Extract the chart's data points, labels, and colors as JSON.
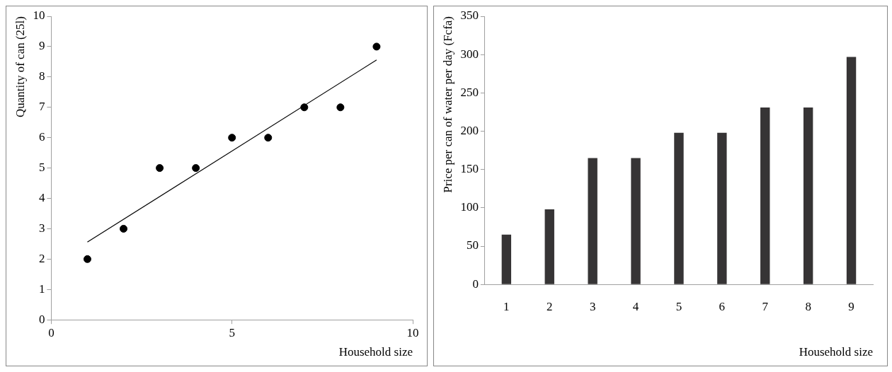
{
  "chart_data": [
    {
      "type": "scatter",
      "xlabel": "Household size",
      "ylabel": "Quantity of can (25l)",
      "x": [
        1,
        2,
        3,
        4,
        5,
        6,
        7,
        8,
        9
      ],
      "grid": false,
      "xlim": [
        0,
        10
      ],
      "xticks": [
        0,
        5,
        10
      ],
      "ylim": [
        0,
        10
      ],
      "yticks": [
        0,
        1,
        2,
        3,
        4,
        5,
        6,
        7,
        8,
        9,
        10
      ],
      "series": [
        {
          "type": "scatter",
          "marker": "circle",
          "color": "#000000",
          "values": [
            2,
            3,
            5,
            5,
            6,
            6,
            7,
            7,
            9
          ]
        },
        {
          "type": "line",
          "marker": "none",
          "color": "#000000",
          "x": [
            1,
            9
          ],
          "values": [
            2.56,
            8.56
          ]
        }
      ]
    },
    {
      "type": "bar",
      "xlabel": "Household size",
      "ylabel": "Price per can of water per day (Fcfa)",
      "categories": [
        "1",
        "2",
        "3",
        "4",
        "5",
        "6",
        "7",
        "8",
        "9"
      ],
      "color": "#363435",
      "grid": false,
      "ylim": [
        0,
        350
      ],
      "yticks": [
        0,
        50,
        100,
        150,
        200,
        250,
        300,
        350
      ],
      "values": [
        65,
        98,
        165,
        165,
        198,
        198,
        231,
        231,
        297
      ]
    }
  ]
}
